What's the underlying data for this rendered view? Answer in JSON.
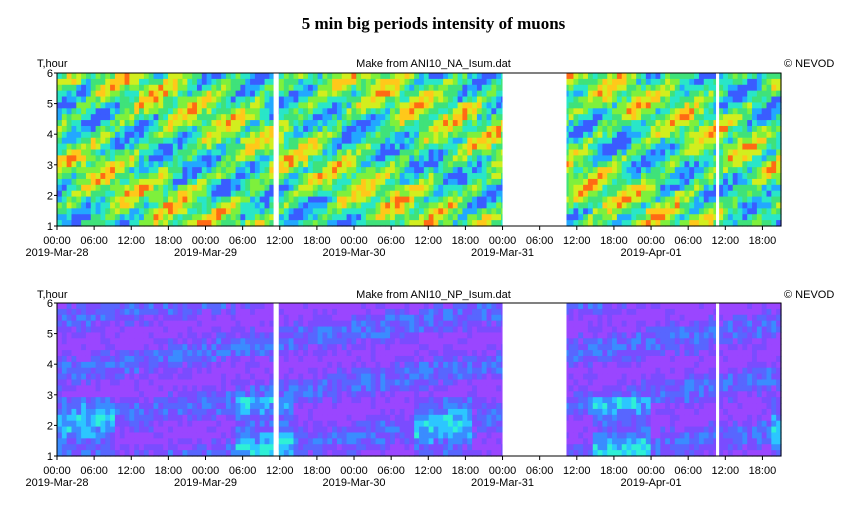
{
  "title": "5 min big periods intensity of muons",
  "colors": {
    "na_palette": [
      "#3a5cff",
      "#22a8ff",
      "#29e6c8",
      "#3fe27a",
      "#7ef03c",
      "#d2ee1e",
      "#ffc81a",
      "#ff6a14"
    ],
    "np_palette": [
      "#9a46ff",
      "#7a4cff",
      "#5866ff",
      "#3a8cff",
      "#2cc6ff",
      "#2ff0d6",
      "#7cf580",
      "#d8f233"
    ],
    "gap": "#ffffff",
    "frame": "#000000"
  },
  "chart_data": [
    {
      "type": "heatmap",
      "title": "",
      "source_label": "Make from ANI10_NA_Isum.dat",
      "credit": "© NEVOD",
      "ylabel": "T,hour",
      "xlabel": "",
      "ylim": [
        1,
        6
      ],
      "yticks": [
        "1",
        "2",
        "3",
        "4",
        "5",
        "6"
      ],
      "xlim": [
        "2019-03-28 00:00",
        "2019-04-01 21:00"
      ],
      "xtick_labels": [
        "00:00",
        "06:00",
        "12:00",
        "18:00",
        "00:00",
        "06:00",
        "12:00",
        "18:00",
        "00:00",
        "06:00",
        "12:00",
        "18:00",
        "00:00",
        "06:00",
        "12:00",
        "18:00",
        "00:00",
        "06:00",
        "12:00",
        "18:00"
      ],
      "date_labels": [
        "2019-Mar-28",
        "2019-Mar-29",
        "2019-Mar-30",
        "2019-Mar-31",
        "2019-Apr-01"
      ],
      "data_gaps": [
        [
          "2019-03-29 11:00",
          "2019-03-29 11:50"
        ],
        [
          "2019-03-31 00:00",
          "2019-03-31 10:20"
        ],
        [
          "2019-04-01 10:30",
          "2019-04-01 11:00"
        ]
      ],
      "colormap": "na_palette"
    },
    {
      "type": "heatmap",
      "title": "",
      "source_label": "Make from ANI10_NP_Isum.dat",
      "credit": "© NEVOD",
      "ylabel": "T,hour",
      "xlabel": "",
      "ylim": [
        1,
        6
      ],
      "yticks": [
        "1",
        "2",
        "3",
        "4",
        "5",
        "6"
      ],
      "xlim": [
        "2019-03-28 00:00",
        "2019-04-01 21:00"
      ],
      "xtick_labels": [
        "00:00",
        "06:00",
        "12:00",
        "18:00",
        "00:00",
        "06:00",
        "12:00",
        "18:00",
        "00:00",
        "06:00",
        "12:00",
        "18:00",
        "00:00",
        "06:00",
        "12:00",
        "18:00",
        "00:00",
        "06:00",
        "12:00",
        "18:00"
      ],
      "date_labels": [
        "2019-Mar-28",
        "2019-Mar-29",
        "2019-Mar-30",
        "2019-Mar-31",
        "2019-Apr-01"
      ],
      "data_gaps": [
        [
          "2019-03-29 11:00",
          "2019-03-29 11:50"
        ],
        [
          "2019-03-31 00:00",
          "2019-03-31 10:20"
        ],
        [
          "2019-04-01 10:30",
          "2019-04-01 11:00"
        ]
      ],
      "colormap": "np_palette"
    }
  ]
}
